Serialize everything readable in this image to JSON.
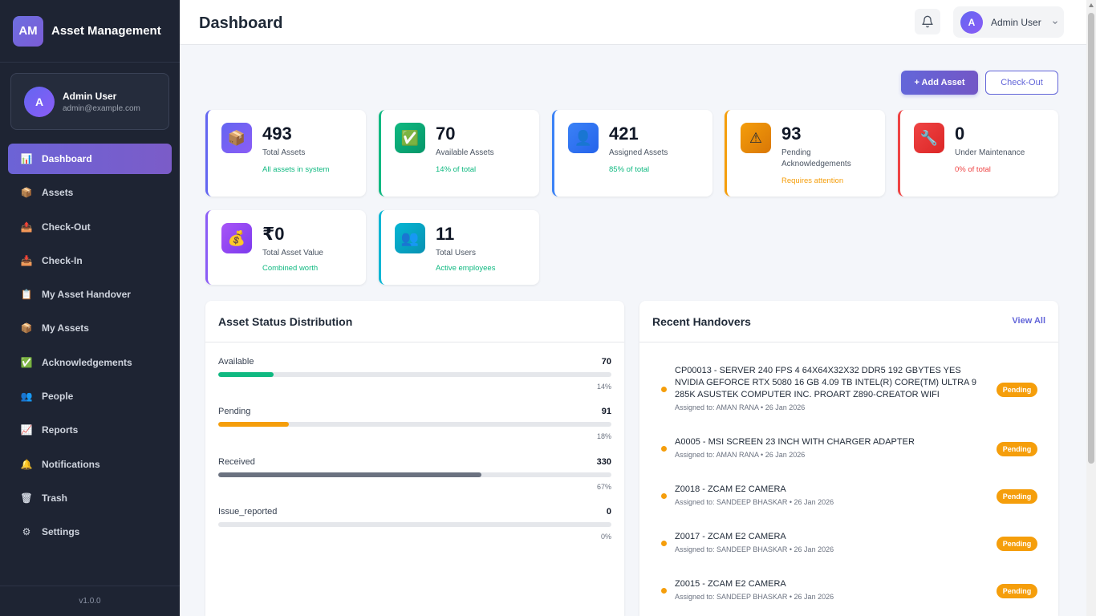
{
  "brand": {
    "logo": "AM",
    "name": "Asset Management"
  },
  "user": {
    "initial": "A",
    "name": "Admin User",
    "email": "admin@example.com"
  },
  "sidebar": {
    "items": [
      {
        "label": "Dashboard",
        "icon": "dashboard-icon"
      },
      {
        "label": "Assets",
        "icon": "package-icon"
      },
      {
        "label": "Check-Out",
        "icon": "outbox-icon"
      },
      {
        "label": "Check-In",
        "icon": "inbox-icon"
      },
      {
        "label": "My Asset Handover",
        "icon": "clipboard-icon"
      },
      {
        "label": "My Assets",
        "icon": "package-icon"
      },
      {
        "label": "Acknowledgements",
        "icon": "checkmark-icon"
      },
      {
        "label": "People",
        "icon": "people-icon"
      },
      {
        "label": "Reports",
        "icon": "chart-icon"
      },
      {
        "label": "Notifications",
        "icon": "bell-icon"
      },
      {
        "label": "Trash",
        "icon": "trash-icon"
      },
      {
        "label": "Settings",
        "icon": "gear-icon"
      }
    ],
    "version": "v1.0.0"
  },
  "header": {
    "title": "Dashboard",
    "user_initial": "A",
    "user_name": "Admin User"
  },
  "actions": {
    "add_asset": "+ Add Asset",
    "check_out": "Check-Out"
  },
  "stats": [
    {
      "value": "493",
      "label": "Total Assets",
      "sub": "All assets in system",
      "icon": "package-icon",
      "color": "#6366f1",
      "sub_color": "#10b981"
    },
    {
      "value": "70",
      "label": "Available Assets",
      "sub": "14% of total",
      "icon": "checkmark-icon",
      "color": "#10b981",
      "sub_color": "#10b981"
    },
    {
      "value": "421",
      "label": "Assigned Assets",
      "sub": "85% of total",
      "icon": "person-icon",
      "color": "#3b82f6",
      "sub_color": "#10b981"
    },
    {
      "value": "93",
      "label": "Pending Acknowledgements",
      "sub": "Requires attention",
      "icon": "warning-icon",
      "color": "#f59e0b",
      "sub_color": "#f59e0b"
    },
    {
      "value": "0",
      "label": "Under Maintenance",
      "sub": "0% of total",
      "icon": "wrench-icon",
      "color": "#ef4444",
      "sub_color": "#ef4444"
    },
    {
      "value": "₹0",
      "label": "Total Asset Value",
      "sub": "Combined worth",
      "icon": "money-bag-icon",
      "color": "#8b5cf6",
      "sub_color": "#10b981"
    },
    {
      "value": "11",
      "label": "Total Users",
      "sub": "Active employees",
      "icon": "people-icon",
      "color": "#06b6d4",
      "sub_color": "#10b981"
    }
  ],
  "distribution": {
    "title": "Asset Status Distribution",
    "rows": [
      {
        "label": "Available",
        "count": "70",
        "pct": "14%",
        "fraction": 0.14,
        "color": "#10b981"
      },
      {
        "label": "Pending",
        "count": "91",
        "pct": "18%",
        "fraction": 0.18,
        "color": "#f59e0b"
      },
      {
        "label": "Received",
        "count": "330",
        "pct": "67%",
        "fraction": 0.67,
        "color": "#6b7280"
      },
      {
        "label": "Issue_reported",
        "count": "0",
        "pct": "0%",
        "fraction": 0,
        "color": "#ef4444"
      }
    ]
  },
  "handovers": {
    "title": "Recent Handovers",
    "view_all": "View All",
    "items": [
      {
        "title": "CP00013 - SERVER 240 FPS 4 64X64X32X32 DDR5 192 GBYTES YES NVIDIA GEFORCE RTX 5080 16 GB 4.09 TB INTEL(R) CORE(TM) ULTRA 9 285K ASUSTEK COMPUTER INC. PROART Z890-CREATOR WIFI",
        "meta": "Assigned to: AMAN RANA • 26 Jan 2026",
        "status": "Pending"
      },
      {
        "title": "A0005 - MSI SCREEN 23 INCH WITH CHARGER ADAPTER",
        "meta": "Assigned to: AMAN RANA • 26 Jan 2026",
        "status": "Pending"
      },
      {
        "title": "Z0018 - ZCAM E2 CAMERA",
        "meta": "Assigned to: SANDEEP BHASKAR • 26 Jan 2026",
        "status": "Pending"
      },
      {
        "title": "Z0017 - ZCAM E2 CAMERA",
        "meta": "Assigned to: SANDEEP BHASKAR • 26 Jan 2026",
        "status": "Pending"
      },
      {
        "title": "Z0015 - ZCAM E2 CAMERA",
        "meta": "Assigned to: SANDEEP BHASKAR • 26 Jan 2026",
        "status": "Pending"
      }
    ]
  }
}
